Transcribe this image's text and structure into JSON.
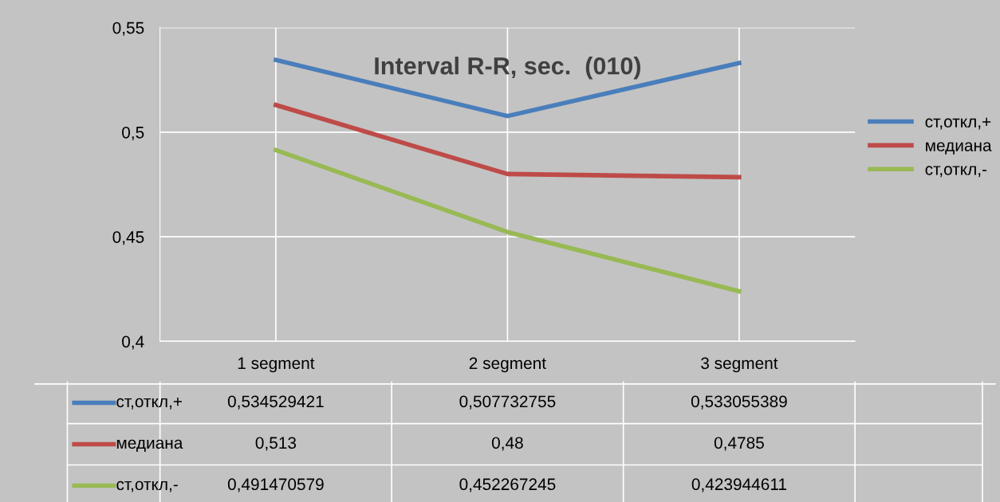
{
  "chart_data": {
    "type": "line",
    "title": "Interval R-R, sec.  (010)",
    "categories": [
      "1 segment",
      "2 segment",
      "3 segment"
    ],
    "series": [
      {
        "name": "ст,откл,+",
        "color": "#4a7ebb",
        "values": [
          0.534529421,
          0.507732755,
          0.533055389
        ],
        "value_labels": [
          "0,534529421",
          "0,507732755",
          "0,533055389"
        ]
      },
      {
        "name": "медиана",
        "color": "#be4b48",
        "values": [
          0.513,
          0.48,
          0.4785
        ],
        "value_labels": [
          "0,513",
          "0,48",
          "0,4785"
        ]
      },
      {
        "name": "ст,откл,-",
        "color": "#98b954",
        "values": [
          0.491470579,
          0.452267245,
          0.423944611
        ],
        "value_labels": [
          "0,491470579",
          "0,452267245",
          "0,423944611"
        ]
      }
    ],
    "ylim": [
      0.4,
      0.55
    ],
    "yticks": [
      {
        "value": 0.4,
        "label": "0,4"
      },
      {
        "value": 0.45,
        "label": "0,45"
      },
      {
        "value": 0.5,
        "label": "0,5"
      },
      {
        "value": 0.55,
        "label": "0,55"
      }
    ],
    "grid": true,
    "legend": "right",
    "marker": "none",
    "line_style": "solid"
  }
}
